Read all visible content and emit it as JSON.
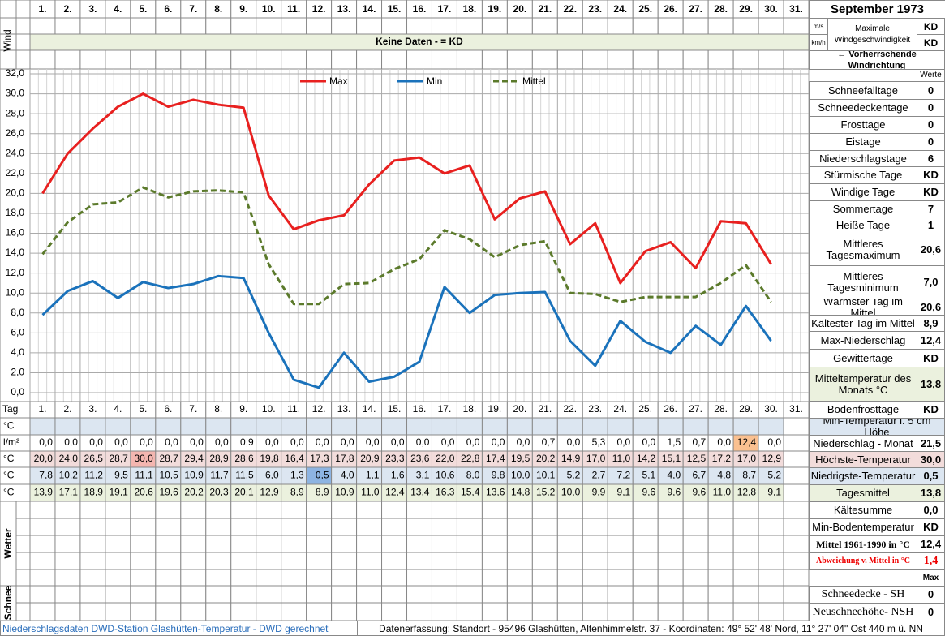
{
  "header": {
    "month": "September 1973"
  },
  "wind": {
    "label": "Wind",
    "units": [
      "m/s",
      "km/h"
    ],
    "max_label": "Maximale Windgeschwindigkeit",
    "values": [
      "KD",
      "KD"
    ],
    "no_data": "Keine Daten -  = KD",
    "direction": "← Vorherrschende Windrichtung"
  },
  "chart_data": {
    "type": "line",
    "categories": [
      "1.",
      "2.",
      "3.",
      "4.",
      "5.",
      "6.",
      "7.",
      "8.",
      "9.",
      "10.",
      "11.",
      "12.",
      "13.",
      "14.",
      "15.",
      "16.",
      "17.",
      "18.",
      "19.",
      "20.",
      "21.",
      "22.",
      "23.",
      "24.",
      "25.",
      "26.",
      "27.",
      "28.",
      "29.",
      "30.",
      "31."
    ],
    "series": [
      {
        "name": "Max",
        "color": "#e8201f",
        "dashed": false,
        "values": [
          20.0,
          24.0,
          26.5,
          28.7,
          30.0,
          28.7,
          29.4,
          28.9,
          28.6,
          19.8,
          16.4,
          17.3,
          17.8,
          20.9,
          23.3,
          23.6,
          22.0,
          22.8,
          17.4,
          19.5,
          20.2,
          14.9,
          17.0,
          11.0,
          14.2,
          15.1,
          12.5,
          17.2,
          17.0,
          12.9,
          null
        ],
        "value_labels": [
          "20,0",
          "24,0",
          "26,5",
          "28,7",
          "30,0",
          "28,7",
          "29,4",
          "28,9",
          "28,6",
          "19,8",
          "16,4",
          "17,3",
          "17,8",
          "20,9",
          "23,3",
          "23,6",
          "22,0",
          "22,8",
          "17,4",
          "19,5",
          "20,2",
          "14,9",
          "17,0",
          "11,0",
          "14,2",
          "15,1",
          "12,5",
          "17,2",
          "17,0",
          "12,9",
          null
        ]
      },
      {
        "name": "Min",
        "color": "#1a72bb",
        "dashed": false,
        "values": [
          7.8,
          10.2,
          11.2,
          9.5,
          11.1,
          10.5,
          10.9,
          11.7,
          11.5,
          6.0,
          1.3,
          0.5,
          4.0,
          1.1,
          1.6,
          3.1,
          10.6,
          8.0,
          9.8,
          10.0,
          10.1,
          5.2,
          2.7,
          7.2,
          5.1,
          4.0,
          6.7,
          4.8,
          8.7,
          5.2,
          null
        ],
        "value_labels": [
          "7,8",
          "10,2",
          "11,2",
          "9,5",
          "11,1",
          "10,5",
          "10,9",
          "11,7",
          "11,5",
          "6,0",
          "1,3",
          "0,5",
          "4,0",
          "1,1",
          "1,6",
          "3,1",
          "10,6",
          "8,0",
          "9,8",
          "10,0",
          "10,1",
          "5,2",
          "2,7",
          "7,2",
          "5,1",
          "4,0",
          "6,7",
          "4,8",
          "8,7",
          "5,2",
          null
        ]
      },
      {
        "name": "Mittel",
        "color": "#5b7a2b",
        "dashed": true,
        "values": [
          13.9,
          17.1,
          18.9,
          19.1,
          20.6,
          19.6,
          20.2,
          20.3,
          20.1,
          12.9,
          8.9,
          8.9,
          10.9,
          11.0,
          12.4,
          13.4,
          16.3,
          15.4,
          13.6,
          14.8,
          15.2,
          10.0,
          9.9,
          9.1,
          9.6,
          9.6,
          9.6,
          11.0,
          12.8,
          9.1,
          null
        ],
        "value_labels": [
          "13,9",
          "17,1",
          "18,9",
          "19,1",
          "20,6",
          "19,6",
          "20,2",
          "20,3",
          "20,1",
          "12,9",
          "8,9",
          "8,9",
          "10,9",
          "11,0",
          "12,4",
          "13,4",
          "16,3",
          "15,4",
          "13,6",
          "14,8",
          "15,2",
          "10,0",
          "9,9",
          "9,1",
          "9,6",
          "9,6",
          "9,6",
          "11,0",
          "12,8",
          "9,1",
          null
        ]
      }
    ],
    "ylim": [
      0,
      32
    ],
    "yticks": [
      {
        "value": 0,
        "label": "0,0"
      },
      {
        "value": 2,
        "label": "2,0"
      },
      {
        "value": 4,
        "label": "4,0"
      },
      {
        "value": 6,
        "label": "6,0"
      },
      {
        "value": 8,
        "label": "8,0"
      },
      {
        "value": 10,
        "label": "10,0"
      },
      {
        "value": 12,
        "label": "12,0"
      },
      {
        "value": 14,
        "label": "14,0"
      },
      {
        "value": 16,
        "label": "16,0"
      },
      {
        "value": 18,
        "label": "18,0"
      },
      {
        "value": 20,
        "label": "20,0"
      },
      {
        "value": 22,
        "label": "22,0"
      },
      {
        "value": 24,
        "label": "24,0"
      },
      {
        "value": 26,
        "label": "26,0"
      },
      {
        "value": 28,
        "label": "28,0"
      },
      {
        "value": 30,
        "label": "30,0"
      },
      {
        "value": 32,
        "label": "32,0"
      }
    ],
    "grid": true,
    "legend": "top"
  },
  "table": {
    "day_label": "Tag",
    "unit_labels": [
      "°C",
      "l/m²",
      "°C",
      "°C",
      "°C"
    ],
    "precipitation": [
      "0,0",
      "0,0",
      "0,0",
      "0,0",
      "0,0",
      "0,0",
      "0,0",
      "0,0",
      "0,9",
      "0,0",
      "0,0",
      "0,0",
      "0,0",
      "0,0",
      "0,0",
      "0,0",
      "0,0",
      "0,0",
      "0,0",
      "0,0",
      "0,7",
      "0,0",
      "5,3",
      "0,0",
      "0,0",
      "1,5",
      "0,7",
      "0,0",
      "12,4",
      "0,0",
      null
    ],
    "weather_label": "Wetter",
    "snow_label": "Schnee"
  },
  "stats": {
    "header": "Werte",
    "rows": [
      {
        "label": "Schneefalltage",
        "value": "0"
      },
      {
        "label": "Schneedeckentage",
        "value": "0"
      },
      {
        "label": "Frosttage",
        "value": "0"
      },
      {
        "label": "Eistage",
        "value": "0"
      },
      {
        "label": "Niederschlagstage",
        "value": "6"
      },
      {
        "label": "Stürmische Tage",
        "value": "KD"
      },
      {
        "label": "Windige Tage",
        "value": "KD"
      },
      {
        "label": "Sommertage",
        "value": "7"
      },
      {
        "label": "Heiße Tage",
        "value": "1"
      },
      {
        "label": "Mittleres Tagesmaximum",
        "value": "20,6"
      },
      {
        "label": "Mittleres Tagesminimum",
        "value": "7,0"
      },
      {
        "label": "Wärmster Tag im Mittel",
        "value": "20,6"
      },
      {
        "label": "Kältester Tag im Mittel",
        "value": "8,9"
      },
      {
        "label": "Max-Niederschlag",
        "value": "12,4"
      },
      {
        "label": "Gewittertage",
        "value": "KD"
      },
      {
        "label": "Mitteltemperatur des Monats °C",
        "value": "13,8"
      },
      {
        "label": "Bodenfrosttage",
        "value": "KD"
      },
      {
        "label": "Min-Temperatur i. 5 cm Höhe",
        "value": null
      },
      {
        "label": "Niederschlag - Monat",
        "value": "21,5"
      },
      {
        "label": "Höchste-Temperatur",
        "value": "30,0"
      },
      {
        "label": "Niedrigste-Temperatur",
        "value": "0,5"
      },
      {
        "label": "Tagesmittel",
        "value": "13,8"
      },
      {
        "label": "Kältesumme",
        "value": "0,0"
      },
      {
        "label": "Min-Bodentemperatur",
        "value": "KD"
      },
      {
        "label": "Mittel 1961-1990 in °C",
        "value": "12,4"
      },
      {
        "label": "Abweichung v. Mittel in °C",
        "value": "1,4"
      },
      {
        "label": null,
        "value": "Max"
      },
      {
        "label": "Schneedecke -   SH",
        "value": "0"
      },
      {
        "label": "Neuschneehöhe- NSH",
        "value": "0"
      }
    ]
  },
  "footer": {
    "left": "Niederschlagsdaten DWD-Station Glashütten-Temperatur -  DWD gerechnet",
    "right": "Datenerfassung: Standort - 95496 Glashütten, Altenhimmelstr. 37 - Koordinaten: 49° 52' 48' Nord,  11° 27' 04\" Ost  440 m ü. NN"
  }
}
